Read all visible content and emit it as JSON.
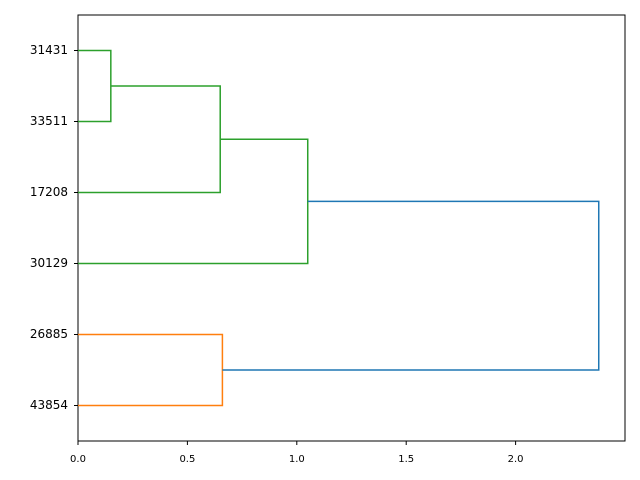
{
  "chart_data": {
    "type": "dendrogram",
    "tree": {
      "height": 2.38,
      "color": "#1f77b4",
      "children": [
        {
          "height": 1.05,
          "color": "#2ca02c",
          "children": [
            {
              "height": 0.65,
              "color": "#2ca02c",
              "children": [
                {
                  "height": 0.15,
                  "color": "#2ca02c",
                  "children": [
                    {
                      "label": "31431"
                    },
                    {
                      "label": "33511"
                    }
                  ]
                },
                {
                  "label": "17208"
                }
              ]
            },
            {
              "label": "30129"
            }
          ]
        },
        {
          "height": 0.66,
          "color": "#ff7f0e",
          "children": [
            {
              "label": "26885"
            },
            {
              "label": "43854"
            }
          ]
        }
      ]
    },
    "xlim": [
      0,
      2.5
    ],
    "xticks": [
      {
        "value": 0,
        "label": "0.0"
      },
      0.5,
      {
        "value": 1,
        "label": "1.0"
      },
      1.5,
      {
        "value": 2,
        "label": "2.0"
      }
    ]
  }
}
